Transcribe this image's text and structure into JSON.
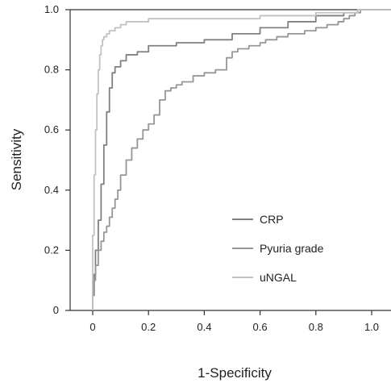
{
  "chart_data": {
    "type": "line",
    "xlabel": "1-Specificity",
    "ylabel": "Sensitivity",
    "xlim": [
      -0.08,
      1.08
    ],
    "ylim": [
      0,
      1
    ],
    "xticks": [
      "0",
      "0.2",
      "0.4",
      "0.6",
      "0.8",
      "1.0"
    ],
    "yticks": [
      "0",
      "0.2",
      "0.4",
      "0.6",
      "0.8",
      "1.0"
    ],
    "grid": false,
    "legend_position": "bottom-right",
    "series": [
      {
        "name": "CRP",
        "color": "#808080",
        "x": [
          0,
          0.005,
          0.01,
          0.02,
          0.03,
          0.04,
          0.05,
          0.06,
          0.07,
          0.08,
          0.1,
          0.12,
          0.16,
          0.2,
          0.3,
          0.4,
          0.5,
          0.6,
          0.7,
          0.8,
          0.9,
          0.95,
          1.0
        ],
        "y": [
          0,
          0.05,
          0.12,
          0.2,
          0.3,
          0.42,
          0.55,
          0.66,
          0.74,
          0.79,
          0.81,
          0.83,
          0.85,
          0.86,
          0.88,
          0.89,
          0.9,
          0.92,
          0.94,
          0.96,
          0.98,
          0.99,
          1.0
        ]
      },
      {
        "name": "Pyuria grade",
        "color": "#969696",
        "x": [
          0,
          0.01,
          0.02,
          0.03,
          0.04,
          0.05,
          0.06,
          0.07,
          0.08,
          0.09,
          0.1,
          0.12,
          0.14,
          0.16,
          0.18,
          0.2,
          0.22,
          0.24,
          0.26,
          0.28,
          0.3,
          0.32,
          0.36,
          0.4,
          0.44,
          0.48,
          0.5,
          0.52,
          0.54,
          0.56,
          0.58,
          0.6,
          0.62,
          0.66,
          0.7,
          0.76,
          0.8,
          0.84,
          0.88,
          0.9,
          0.92,
          0.94,
          0.96,
          1.0
        ],
        "y": [
          0,
          0.1,
          0.15,
          0.2,
          0.23,
          0.26,
          0.28,
          0.31,
          0.34,
          0.37,
          0.4,
          0.45,
          0.5,
          0.54,
          0.57,
          0.6,
          0.62,
          0.65,
          0.7,
          0.73,
          0.74,
          0.75,
          0.76,
          0.78,
          0.79,
          0.8,
          0.84,
          0.86,
          0.87,
          0.87,
          0.88,
          0.88,
          0.89,
          0.9,
          0.91,
          0.92,
          0.93,
          0.94,
          0.95,
          0.96,
          0.97,
          0.98,
          0.99,
          1.0
        ]
      },
      {
        "name": "uNGAL",
        "color": "#c2c2c2",
        "x": [
          0,
          0.005,
          0.01,
          0.015,
          0.02,
          0.025,
          0.03,
          0.035,
          0.04,
          0.05,
          0.06,
          0.08,
          0.1,
          0.12,
          0.15,
          0.2,
          0.3,
          0.4,
          0.5,
          0.6,
          0.7,
          0.8,
          0.9,
          0.95,
          1.0
        ],
        "y": [
          0,
          0.25,
          0.45,
          0.6,
          0.72,
          0.8,
          0.85,
          0.88,
          0.9,
          0.91,
          0.92,
          0.93,
          0.94,
          0.95,
          0.96,
          0.96,
          0.97,
          0.97,
          0.97,
          0.97,
          0.98,
          0.98,
          0.99,
          0.99,
          1.0
        ]
      }
    ]
  }
}
